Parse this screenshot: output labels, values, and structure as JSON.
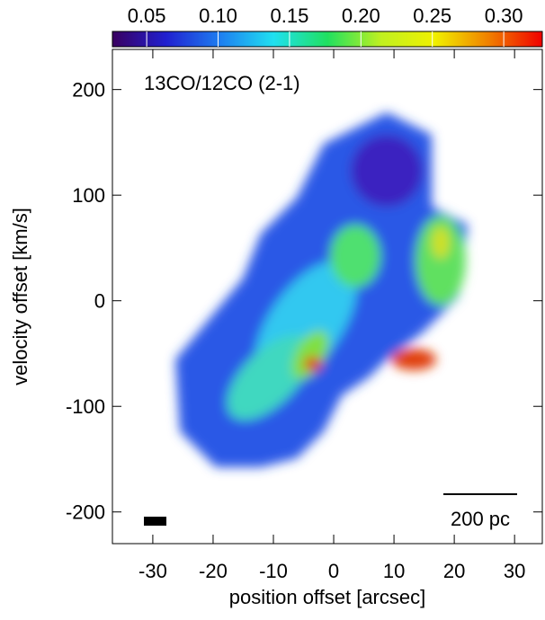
{
  "chart_data": {
    "type": "heatmap",
    "title": "13CO/12CO (2-1)",
    "x_label": "position offset [arcsec]",
    "y_label": "velocity offset [km/s]",
    "xlim": [
      -36.7,
      34.6
    ],
    "ylim": [
      -230,
      238
    ],
    "xticks": [
      -30,
      -20,
      -10,
      0,
      10,
      20,
      30
    ],
    "yticks": [
      -200,
      -100,
      0,
      100,
      200
    ],
    "colorbar": {
      "lim": [
        0.026,
        0.327
      ],
      "ticks": [
        0.05,
        {
          "value": 0.1,
          "label": "0.10"
        },
        0.15,
        {
          "value": 0.2,
          "label": "0.20"
        },
        0.25,
        {
          "value": 0.3,
          "label": "0.30"
        }
      ],
      "colors": [
        "#3a0060",
        "#2020d0",
        "#1e7ef0",
        "#20e0f0",
        "#20e060",
        "#c0f020",
        "#f0f000",
        "#f08000",
        "#f00000"
      ]
    },
    "annotations": [
      "200 pc"
    ]
  }
}
